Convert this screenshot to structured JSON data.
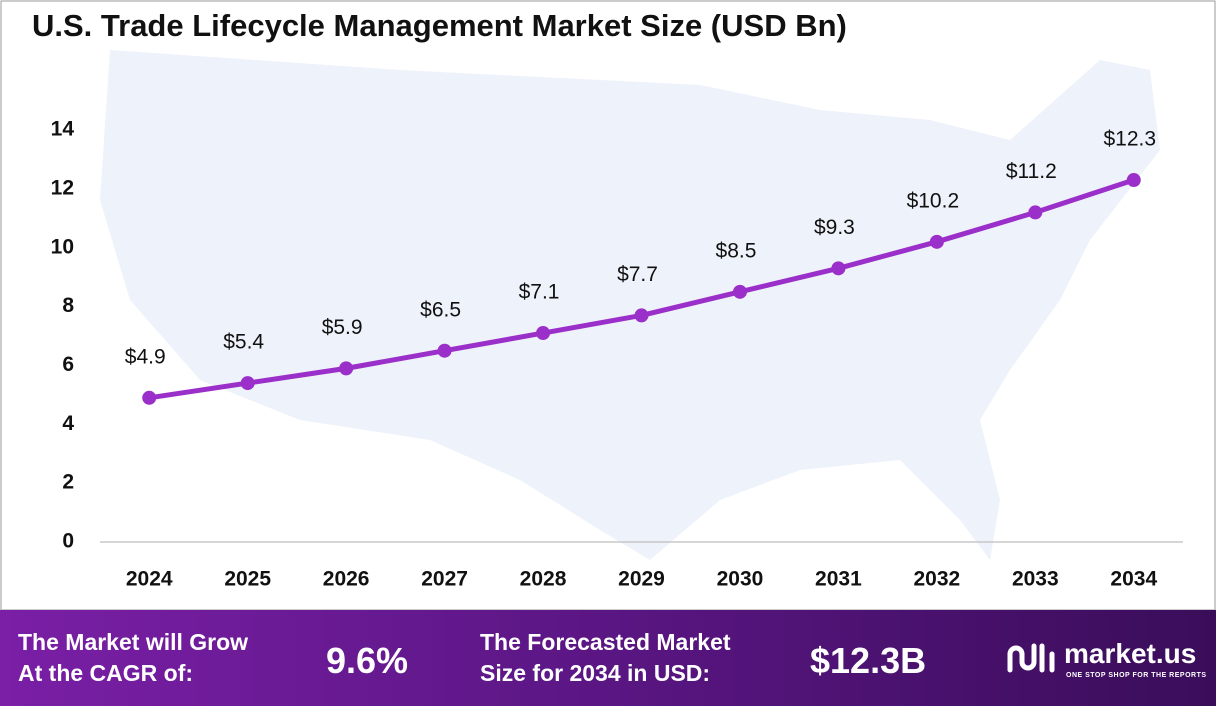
{
  "chart_data": {
    "type": "line",
    "title": "U.S. Trade Lifecycle Management Market Size (USD Bn)",
    "categories": [
      "2024",
      "2025",
      "2026",
      "2027",
      "2028",
      "2029",
      "2030",
      "2031",
      "2032",
      "2033",
      "2034"
    ],
    "values": [
      4.9,
      5.4,
      5.9,
      6.5,
      7.1,
      7.7,
      8.5,
      9.3,
      10.2,
      11.2,
      12.3
    ],
    "value_labels": [
      "$4.9",
      "$5.4",
      "$5.9",
      "$6.5",
      "$7.1",
      "$7.7",
      "$8.5",
      "$9.3",
      "$10.2",
      "$11.2",
      "$12.3"
    ],
    "color": "#9b2fc9",
    "ylim": [
      0,
      14
    ],
    "yticks": [
      0,
      2,
      4,
      6,
      8,
      10,
      12,
      14
    ],
    "grid": false
  },
  "footer": {
    "cagr_text": [
      "The Market will Grow",
      "At the CAGR of:"
    ],
    "cagr_value": "9.6%",
    "forecast_text": [
      "The Forecasted Market",
      "Size for 2034 in USD:"
    ],
    "forecast_value": "$12.3B",
    "brand": "market.us",
    "tagline": "ONE STOP SHOP FOR THE REPORTS"
  }
}
